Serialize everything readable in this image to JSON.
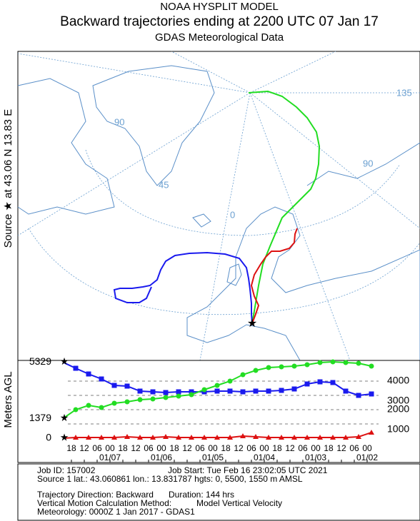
{
  "header": {
    "model": "NOAA HYSPLIT MODEL",
    "title": "Backward trajectories ending at 2200 UTC 07 Jan 17",
    "subtitle": "GDAS Meteorological Data",
    "source_label": "Source ★ at   43.06 N   13.83 E"
  },
  "map": {
    "labels": [
      "135",
      "90",
      "90",
      "45",
      "0"
    ]
  },
  "chart_data": {
    "type": "line",
    "y_label": "Meters AGL",
    "x": [
      0,
      6,
      12,
      18,
      24,
      30,
      36,
      42,
      48,
      54,
      60,
      66,
      72,
      78,
      84,
      90,
      96,
      102,
      108,
      114,
      120,
      126,
      132,
      138,
      144
    ],
    "xlim": [
      0,
      144
    ],
    "xticks": [
      {
        "value": 4,
        "label": "18"
      },
      {
        "value": 10,
        "label": "12"
      },
      {
        "value": 16,
        "label": "06"
      },
      {
        "value": 22,
        "label": "00"
      },
      {
        "value": 28,
        "label": "18"
      },
      {
        "value": 34,
        "label": "12"
      },
      {
        "value": 40,
        "label": "06"
      },
      {
        "value": 46,
        "label": "00"
      },
      {
        "value": 52,
        "label": "18"
      },
      {
        "value": 58,
        "label": "12"
      },
      {
        "value": 64,
        "label": "06"
      },
      {
        "value": 70,
        "label": "00"
      },
      {
        "value": 76,
        "label": "18"
      },
      {
        "value": 82,
        "label": "12"
      },
      {
        "value": 88,
        "label": "06"
      },
      {
        "value": 94,
        "label": "00"
      },
      {
        "value": 100,
        "label": "18"
      },
      {
        "value": 106,
        "label": "12"
      },
      {
        "value": 112,
        "label": "06"
      },
      {
        "value": 118,
        "label": "00"
      },
      {
        "value": 124,
        "label": "18"
      },
      {
        "value": 130,
        "label": "12"
      },
      {
        "value": 136,
        "label": "06"
      },
      {
        "value": 142,
        "label": "00"
      }
    ],
    "date_ticks": [
      {
        "value": 22,
        "label": "01/07"
      },
      {
        "value": 46,
        "label": "01/06"
      },
      {
        "value": 70,
        "label": "01/05"
      },
      {
        "value": 94,
        "label": "01/04"
      },
      {
        "value": 118,
        "label": "01/03"
      },
      {
        "value": 142,
        "label": "01/02"
      }
    ],
    "ylim": [
      -200,
      5550
    ],
    "yticks": [
      1000,
      2000,
      3000,
      4000
    ],
    "series": [
      {
        "color": "#1a1aee",
        "marker": "square",
        "values": [
          5329,
          4900,
          4500,
          4150,
          3700,
          3650,
          3300,
          3250,
          3200,
          3250,
          3250,
          3250,
          3300,
          3300,
          3250,
          3300,
          3300,
          3350,
          3450,
          3800,
          3950,
          3900,
          3300,
          3000,
          3100
        ]
      },
      {
        "color": "#22dd22",
        "marker": "circle",
        "values": [
          1379,
          2000,
          2300,
          2150,
          2450,
          2550,
          2700,
          2750,
          2850,
          2950,
          3050,
          3400,
          3700,
          4000,
          4450,
          4750,
          4950,
          5000,
          5050,
          5150,
          5300,
          5350,
          5300,
          5250,
          5050
        ]
      },
      {
        "color": "#dd1111",
        "marker": "triangle",
        "values": [
          0,
          50,
          50,
          50,
          50,
          100,
          50,
          50,
          100,
          50,
          50,
          50,
          50,
          50,
          150,
          100,
          50,
          50,
          50,
          50,
          50,
          50,
          50,
          100,
          400
        ]
      }
    ]
  },
  "info": {
    "job_id": "Job ID: 157002",
    "job_start": "Job Start: Tue Feb 16 23:02:05 UTC 2021",
    "source": "Source 1 lat.: 43.060861   lon.: 13.831787   hgts: 0, 5500, 1550 m AMSL",
    "direction": "Trajectory Direction: Backward",
    "duration": "Duration: 144 hrs",
    "method_label": "Vertical Motion Calculation Method:",
    "method": "Model Vertical Velocity",
    "meteorology": "Meteorology: 0000Z  1 Jan 2017 - GDAS1"
  }
}
